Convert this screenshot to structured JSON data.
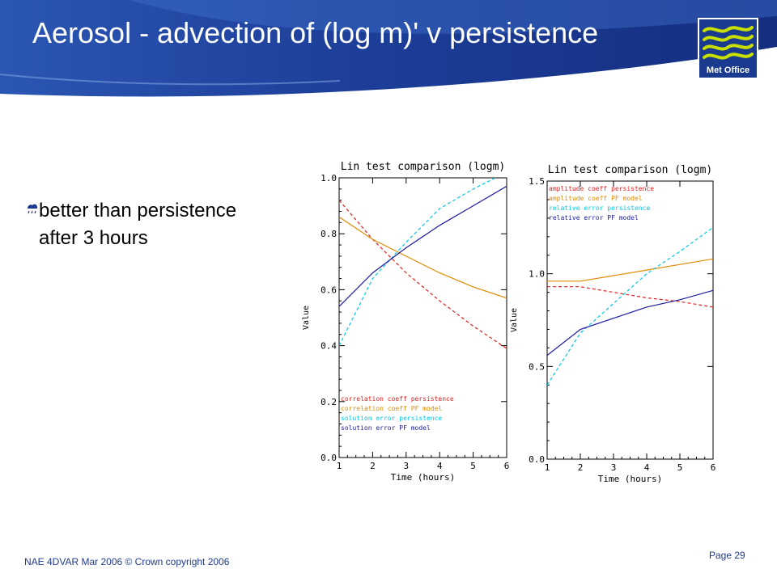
{
  "slide": {
    "title": "Aerosol - advection of (log m)' v persistence",
    "bullet_lines": [
      "better than persistence",
      "after 3 hours"
    ],
    "logo_text": "Met Office",
    "footer_left": "NAE 4DVAR Mar 2006 © Crown copyright 2006",
    "footer_right": "Page 29"
  },
  "colors": {
    "banner": "#1a3a8f",
    "banner_highlight": "#3f6fc9",
    "persistence_red": "#e02020",
    "pf_model_orange": "#e08a00",
    "persistence_cyan": "#00c8e8",
    "pf_model_blue": "#1a1aa0",
    "axis": "#000000"
  },
  "chart_data": [
    {
      "type": "line",
      "title": "Lin test comparison (logm)",
      "xlabel": "Time (hours)",
      "ylabel": "Value",
      "xlim": [
        1,
        6
      ],
      "ylim": [
        0.0,
        1.0
      ],
      "xticks": [
        "1",
        "2",
        "3",
        "4",
        "5",
        "6"
      ],
      "yticks": [
        "0.0",
        "0.2",
        "0.4",
        "0.6",
        "0.8",
        "1.0"
      ],
      "legend_position": "bottom-left",
      "x": [
        1,
        2,
        3,
        4,
        5,
        6
      ],
      "series": [
        {
          "name": "correlation coeff persistence",
          "color": "#e02020",
          "dash": true,
          "values": [
            0.92,
            0.78,
            0.66,
            0.56,
            0.47,
            0.39
          ]
        },
        {
          "name": "correlation coeff PF model",
          "color": "#e08a00",
          "dash": false,
          "values": [
            0.86,
            0.78,
            0.72,
            0.66,
            0.61,
            0.57
          ]
        },
        {
          "name": "solution error persistence",
          "color": "#00c8e8",
          "dash": true,
          "values": [
            0.4,
            0.64,
            0.77,
            0.89,
            0.96,
            1.02
          ]
        },
        {
          "name": "solution error PF model",
          "color": "#1a1aa0",
          "dash": false,
          "values": [
            0.54,
            0.66,
            0.75,
            0.83,
            0.9,
            0.97
          ]
        }
      ]
    },
    {
      "type": "line",
      "title": "Lin test comparison (logm)",
      "xlabel": "Time (hours)",
      "ylabel": "Value",
      "xlim": [
        1,
        6
      ],
      "ylim": [
        0.0,
        1.5
      ],
      "xticks": [
        "1",
        "2",
        "3",
        "4",
        "5",
        "6"
      ],
      "yticks": [
        "0.0",
        "0.5",
        "1.0",
        "1.5"
      ],
      "legend_position": "top-left",
      "x": [
        1,
        2,
        3,
        4,
        5,
        6
      ],
      "series": [
        {
          "name": "amplitude coeff persistence",
          "color": "#e02020",
          "dash": true,
          "values": [
            0.93,
            0.93,
            0.9,
            0.87,
            0.85,
            0.82
          ]
        },
        {
          "name": "amplitude coeff PF model",
          "color": "#e08a00",
          "dash": false,
          "values": [
            0.96,
            0.96,
            0.99,
            1.02,
            1.05,
            1.08
          ]
        },
        {
          "name": "relative error persistence",
          "color": "#00c8e8",
          "dash": true,
          "values": [
            0.4,
            0.68,
            0.84,
            1.0,
            1.12,
            1.25
          ]
        },
        {
          "name": "relative error PF model",
          "color": "#1a1aa0",
          "dash": false,
          "values": [
            0.56,
            0.7,
            0.76,
            0.82,
            0.86,
            0.91
          ]
        }
      ]
    }
  ]
}
